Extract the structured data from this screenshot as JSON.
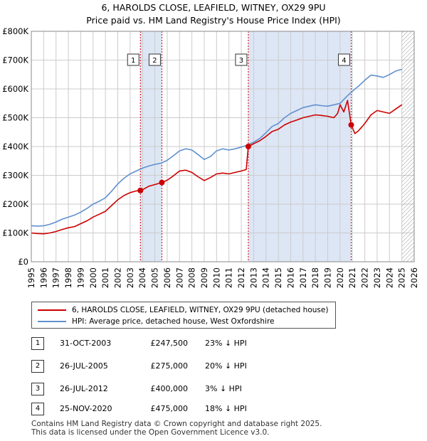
{
  "title_line1": "6, HAROLDS CLOSE, LEAFIELD, WITNEY, OX29 9PU",
  "title_line2": "Price paid vs. HM Land Registry's House Price Index (HPI)",
  "legend": {
    "red_label": "6, HAROLDS CLOSE, LEAFIELD, WITNEY, OX29 9PU (detached house)",
    "blue_label": "HPI: Average price, detached house, West Oxfordshire"
  },
  "colors": {
    "red": "#cc0000",
    "blue": "#6090d0",
    "band": "#dde6f5",
    "grid": "#cccccc"
  },
  "sales": [
    {
      "num": "1",
      "date": "31-OCT-2003",
      "price": "£247,500",
      "hpi": "23% ↓ HPI"
    },
    {
      "num": "2",
      "date": "26-JUL-2005",
      "price": "£275,000",
      "hpi": "20% ↓ HPI"
    },
    {
      "num": "3",
      "date": "26-JUL-2012",
      "price": "£400,000",
      "hpi": "3% ↓ HPI"
    },
    {
      "num": "4",
      "date": "25-NOV-2020",
      "price": "£475,000",
      "hpi": "18% ↓ HPI"
    }
  ],
  "footer": {
    "line1": "Contains HM Land Registry data © Crown copyright and database right 2025.",
    "line2": "This data is licensed under the Open Government Licence v3.0."
  },
  "chart_data": {
    "type": "line",
    "xlim": [
      1995,
      2026
    ],
    "ylim": [
      0,
      800000
    ],
    "x_ticks": [
      "1995",
      "1996",
      "1997",
      "1998",
      "1999",
      "2000",
      "2001",
      "2002",
      "2003",
      "2004",
      "2005",
      "2006",
      "2007",
      "2008",
      "2009",
      "2010",
      "2011",
      "2012",
      "2013",
      "2014",
      "2015",
      "2016",
      "2017",
      "2018",
      "2019",
      "2020",
      "2021",
      "2022",
      "2023",
      "2024",
      "2025",
      "2026"
    ],
    "y_ticks": [
      {
        "value": 0,
        "label": "£0"
      },
      {
        "value": 100000,
        "label": "£100K"
      },
      {
        "value": 200000,
        "label": "£200K"
      },
      {
        "value": 300000,
        "label": "£300K"
      },
      {
        "value": 400000,
        "label": "£400K"
      },
      {
        "value": 500000,
        "label": "£500K"
      },
      {
        "value": 600000,
        "label": "£600K"
      },
      {
        "value": 700000,
        "label": "£700K"
      },
      {
        "value": 800000,
        "label": "£800K"
      }
    ],
    "hatch_from": 2025.0,
    "shaded_bands": [
      [
        2003.83,
        2005.57
      ],
      [
        2012.57,
        2020.9
      ]
    ],
    "sale_markers": [
      {
        "label": "1",
        "x": 2003.83,
        "y": 247500
      },
      {
        "label": "2",
        "x": 2005.57,
        "y": 275000
      },
      {
        "label": "3",
        "x": 2012.57,
        "y": 400000
      },
      {
        "label": "4",
        "x": 2020.9,
        "y": 475000
      }
    ],
    "series": [
      {
        "name": "6, HAROLDS CLOSE, LEAFIELD, WITNEY, OX29 9PU (detached house)",
        "color": "#cc0000",
        "x": [
          1995,
          1995.5,
          1996,
          1996.5,
          1997,
          1997.5,
          1998,
          1998.5,
          1999,
          1999.5,
          2000,
          2000.5,
          2001,
          2001.5,
          2002,
          2002.5,
          2003,
          2003.5,
          2003.83,
          2004,
          2004.5,
          2005,
          2005.57,
          2006,
          2006.5,
          2007,
          2007.5,
          2008,
          2008.5,
          2009,
          2009.5,
          2010,
          2010.5,
          2011,
          2011.5,
          2012,
          2012.4,
          2012.57,
          2013,
          2013.5,
          2014,
          2014.5,
          2015,
          2015.5,
          2016,
          2016.5,
          2017,
          2017.5,
          2018,
          2018.5,
          2019,
          2019.5,
          2019.8,
          2020,
          2020.3,
          2020.6,
          2020.9,
          2021.2,
          2021.5,
          2022,
          2022.5,
          2023,
          2023.5,
          2024,
          2024.5,
          2025
        ],
        "y": [
          100000,
          98000,
          97000,
          100000,
          105000,
          112000,
          118000,
          122000,
          132000,
          142000,
          155000,
          165000,
          175000,
          195000,
          215000,
          230000,
          240000,
          246000,
          247500,
          250000,
          262000,
          268000,
          275000,
          283000,
          298000,
          315000,
          318000,
          310000,
          295000,
          282000,
          292000,
          305000,
          308000,
          305000,
          310000,
          315000,
          320000,
          400000,
          410000,
          420000,
          435000,
          452000,
          460000,
          475000,
          485000,
          492000,
          500000,
          505000,
          510000,
          508000,
          505000,
          500000,
          515000,
          545000,
          520000,
          560000,
          475000,
          445000,
          455000,
          480000,
          510000,
          525000,
          520000,
          515000,
          530000,
          545000
        ]
      },
      {
        "name": "HPI: Average price, detached house, West Oxfordshire",
        "color": "#6090d0",
        "x": [
          1995,
          1995.5,
          1996,
          1996.5,
          1997,
          1997.5,
          1998,
          1998.5,
          1999,
          1999.5,
          2000,
          2000.5,
          2001,
          2001.5,
          2002,
          2002.5,
          2003,
          2003.5,
          2004,
          2004.5,
          2005,
          2005.5,
          2006,
          2006.5,
          2007,
          2007.5,
          2008,
          2008.5,
          2009,
          2009.5,
          2010,
          2010.5,
          2011,
          2011.5,
          2012,
          2012.5,
          2013,
          2013.5,
          2014,
          2014.5,
          2015,
          2015.5,
          2016,
          2016.5,
          2017,
          2017.5,
          2018,
          2018.5,
          2019,
          2019.5,
          2020,
          2020.5,
          2021,
          2021.5,
          2022,
          2022.5,
          2023,
          2023.5,
          2024,
          2024.5,
          2025
        ],
        "y": [
          125000,
          124000,
          125000,
          130000,
          138000,
          148000,
          155000,
          162000,
          172000,
          185000,
          200000,
          210000,
          222000,
          245000,
          270000,
          290000,
          305000,
          315000,
          325000,
          332000,
          338000,
          342000,
          352000,
          368000,
          385000,
          392000,
          388000,
          372000,
          355000,
          365000,
          385000,
          392000,
          388000,
          392000,
          398000,
          405000,
          415000,
          428000,
          448000,
          470000,
          480000,
          500000,
          515000,
          525000,
          535000,
          540000,
          545000,
          542000,
          540000,
          545000,
          550000,
          572000,
          592000,
          610000,
          630000,
          648000,
          645000,
          640000,
          650000,
          662000,
          668000
        ]
      }
    ]
  }
}
